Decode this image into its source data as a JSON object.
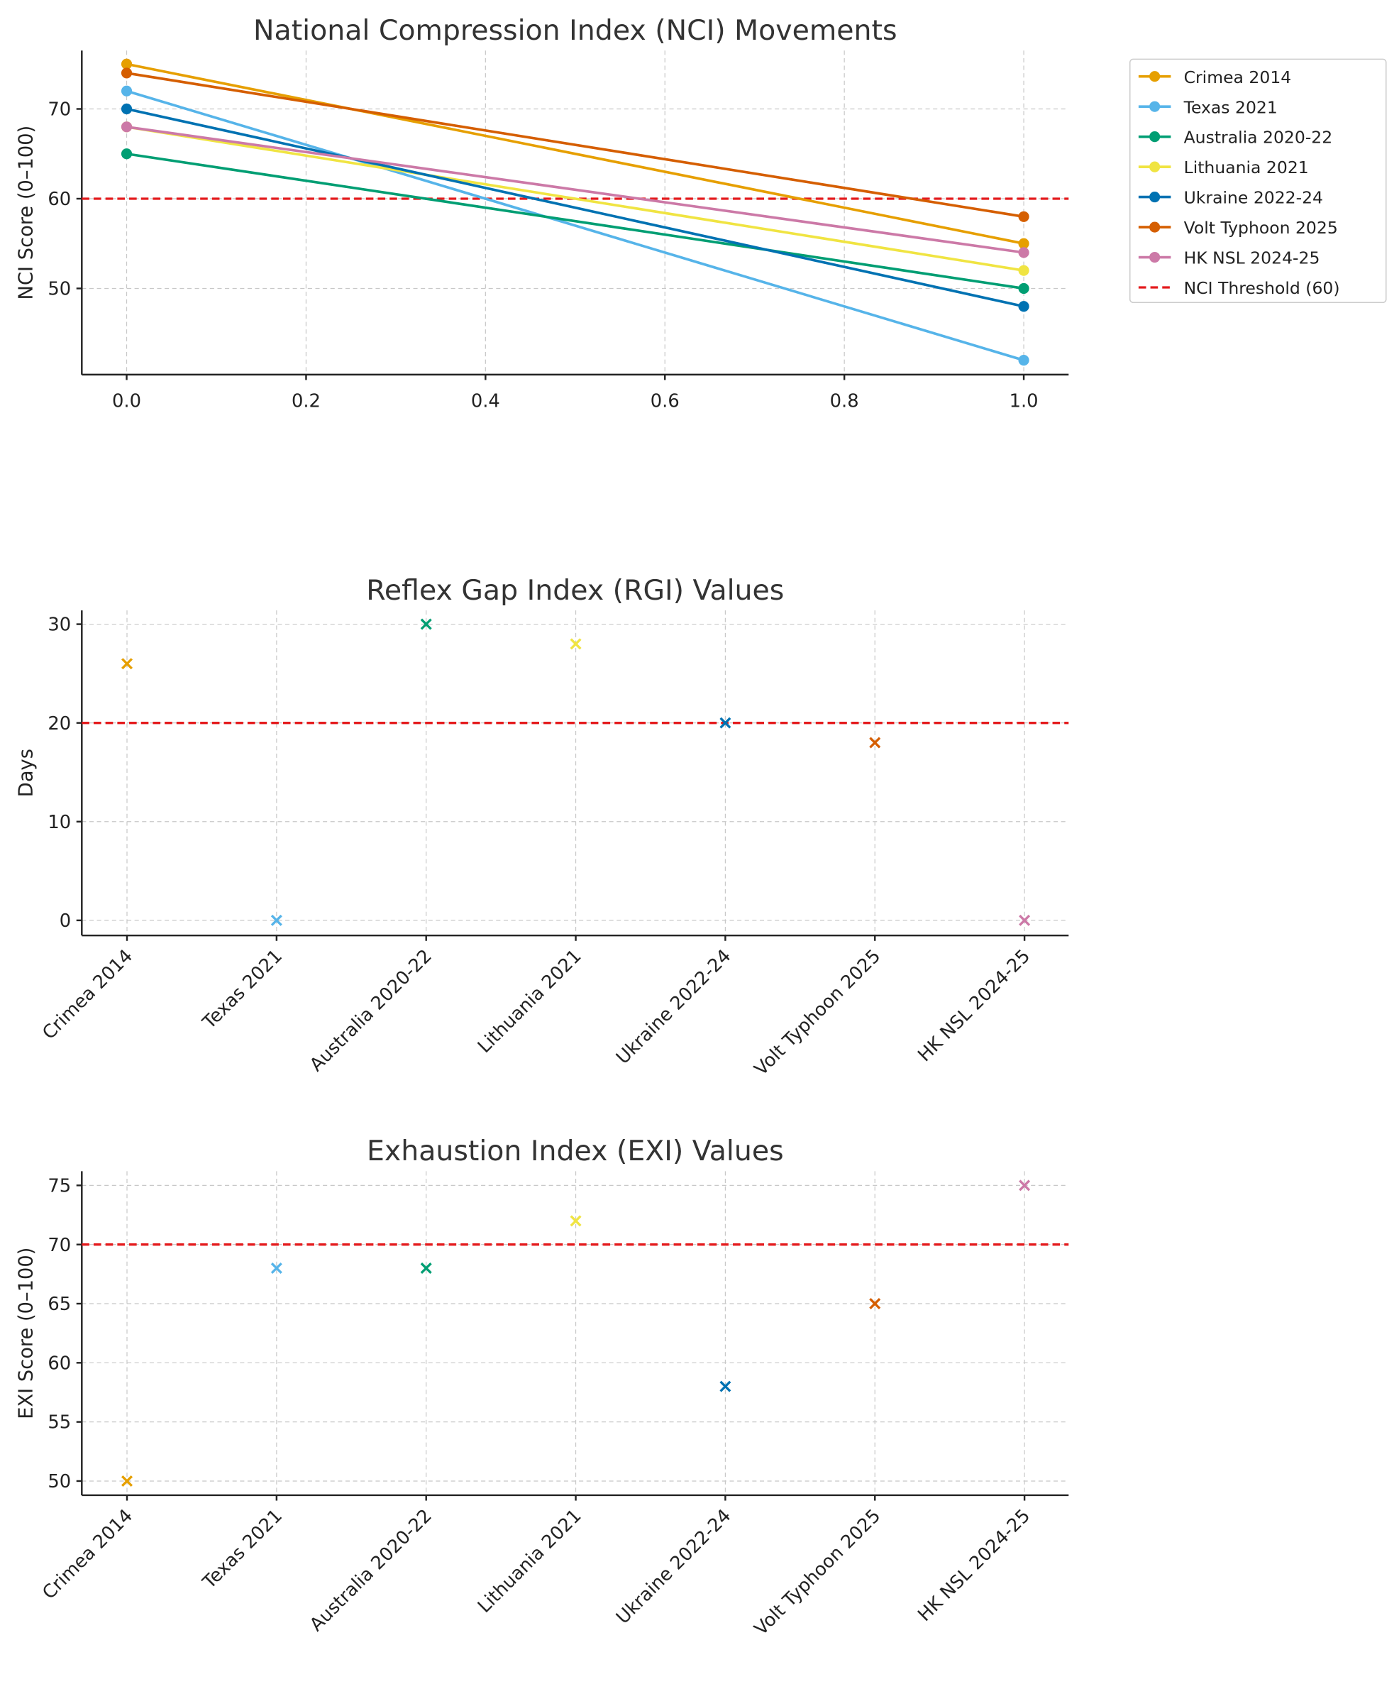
{
  "colors": [
    "#E69F00",
    "#56B4E9",
    "#009E73",
    "#F0E442",
    "#0072B2",
    "#D55E00",
    "#CC79A7"
  ],
  "threshold_color": "#E41A1C",
  "chart_data": [
    {
      "type": "line",
      "title": "National Compression Index (NCI) Movements",
      "xlabel": "",
      "ylabel": "NCI Score (0–100)",
      "x": [
        0,
        1
      ],
      "xticks": [
        "0.0",
        "0.2",
        "0.4",
        "0.6",
        "0.8",
        "1.0"
      ],
      "xtick_values": [
        0,
        0.2,
        0.4,
        0.6,
        0.8,
        1.0
      ],
      "xlim": [
        -0.05,
        1.05
      ],
      "yticks": [
        50,
        60,
        70
      ],
      "ylim": [
        40.4,
        76.5
      ],
      "grid": true,
      "legend_placement": "outside-right-top",
      "series": [
        {
          "name": "Crimea 2014",
          "values": [
            75,
            55
          ]
        },
        {
          "name": "Texas 2021",
          "values": [
            72,
            42
          ]
        },
        {
          "name": "Australia 2020-22",
          "values": [
            65,
            50
          ]
        },
        {
          "name": "Lithuania 2021",
          "values": [
            68,
            52
          ]
        },
        {
          "name": "Ukraine 2022-24",
          "values": [
            70,
            48
          ]
        },
        {
          "name": "Volt Typhoon 2025",
          "values": [
            74,
            58
          ]
        },
        {
          "name": "HK NSL 2024-25",
          "values": [
            68,
            54
          ]
        }
      ],
      "threshold": {
        "value": 60,
        "label": "NCI Threshold (60)"
      }
    },
    {
      "type": "scatter",
      "title": "Reflex Gap Index (RGI) Values",
      "xlabel": "",
      "ylabel": "Days",
      "categories": [
        "Crimea 2014",
        "Texas 2021",
        "Australia 2020-22",
        "Lithuania 2021",
        "Ukraine 2022-24",
        "Volt Typhoon 2025",
        "HK NSL 2024-25"
      ],
      "values": [
        26,
        0,
        30,
        28,
        20,
        18,
        0
      ],
      "yticks": [
        0,
        10,
        20,
        30
      ],
      "ylim": [
        -1.53,
        31.4
      ],
      "grid": true,
      "threshold": {
        "value": 20
      }
    },
    {
      "type": "scatter",
      "title": "Exhaustion Index (EXI) Values",
      "xlabel": "",
      "ylabel": "EXI Score (0–100)",
      "categories": [
        "Crimea 2014",
        "Texas 2021",
        "Australia 2020-22",
        "Lithuania 2021",
        "Ukraine 2022-24",
        "Volt Typhoon 2025",
        "HK NSL 2024-25"
      ],
      "values": [
        50,
        68,
        68,
        72,
        58,
        65,
        75
      ],
      "yticks": [
        50,
        55,
        60,
        65,
        70,
        75
      ],
      "ylim": [
        48.8,
        76.2
      ],
      "grid": true,
      "threshold": {
        "value": 70
      }
    }
  ]
}
